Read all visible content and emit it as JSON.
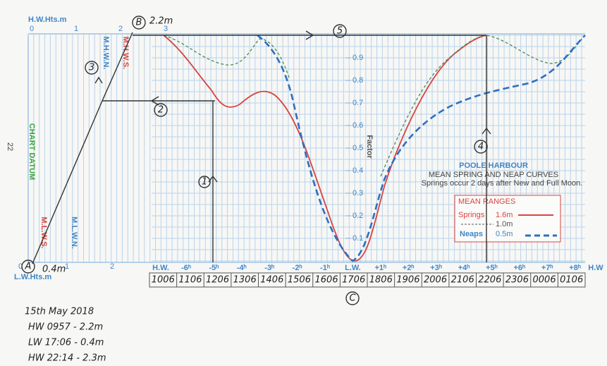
{
  "heights": {
    "hw_label": "H.W.Hts.m",
    "hw_scale": [
      "0",
      "1",
      "2",
      "3"
    ],
    "lw_label": "L.W.Hts.m",
    "lw_scale": [
      "0",
      "1",
      "2"
    ],
    "page_number": "22",
    "datum": "CHART DATUM",
    "mhws": "M.H.W.S.",
    "mhwn": "M.H.W.N.",
    "mlwn": "M.L.W.N.",
    "mlws": "M.L.W.S."
  },
  "factor": {
    "label": "Factor",
    "ticks": [
      "0.9",
      "0.8",
      "0.7",
      "0.6",
      "0.5",
      "0.4",
      "0.3",
      "0.2",
      "0.1"
    ]
  },
  "title": {
    "name": "POOLE HARBOUR",
    "subtitle": "MEAN SPRING AND NEAP CURVES",
    "note": "Springs occur 2 days after New and Full Moon."
  },
  "legend": {
    "title": "MEAN RANGES",
    "springs": "Springs",
    "springs_range": "1.6m",
    "mid_range": "1.0m",
    "neaps": "Neaps",
    "neaps_range": "0.5m"
  },
  "time_axis": [
    "H.W.",
    "-6ʰ",
    "-5ʰ",
    "-4ʰ",
    "-3ʰ",
    "-2ʰ",
    "-1ʰ",
    "L.W.",
    "+1ʰ",
    "+2ʰ",
    "+3ʰ",
    "+4ʰ",
    "+5ʰ",
    "+6ʰ",
    "+7ʰ",
    "+8ʰ",
    "H.W"
  ],
  "times": [
    "1006",
    "1106",
    "1206",
    "1306",
    "1406",
    "1506",
    "1606",
    "1706",
    "1806",
    "1906",
    "2006",
    "2106",
    "2206",
    "2306",
    "0006",
    "0106"
  ],
  "annotations": {
    "a": "A",
    "a_height": "0.4m",
    "b": "B",
    "b_height": "2.2m",
    "c": "C",
    "step1": "1",
    "step2": "2",
    "step3": "3",
    "step4": "4",
    "step5": "5"
  },
  "notes": [
    "15th May 2018",
    "HW 0957 - 2.2m",
    "LW 17:06 - 0.4m",
    "HW 22:14 - 2.3m"
  ]
}
